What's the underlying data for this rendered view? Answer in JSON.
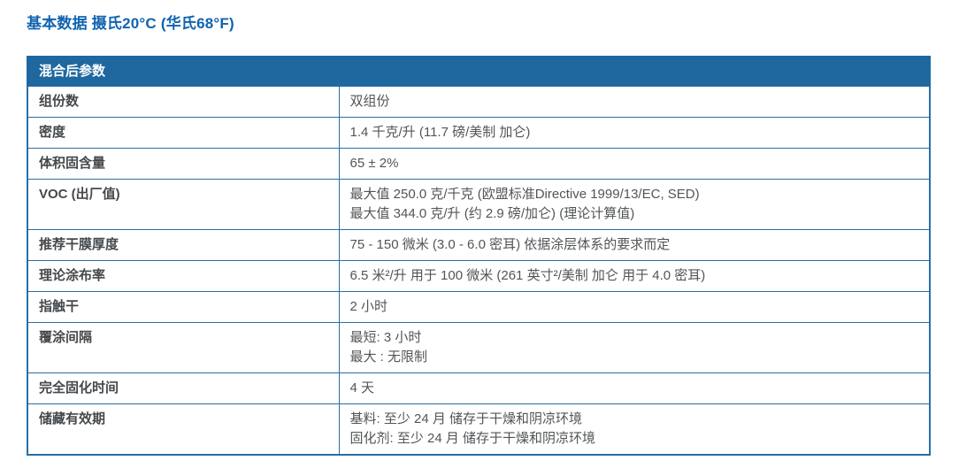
{
  "page": {
    "title": "基本数据 摄氏20°C (华氏68°F)"
  },
  "table": {
    "header": "混合后参数",
    "rows": [
      {
        "label": "组份数",
        "values": [
          "双组份"
        ]
      },
      {
        "label": "密度",
        "values": [
          "1.4 千克/升 (11.7 磅/美制 加仑)"
        ]
      },
      {
        "label": "体积固含量",
        "values": [
          "65 ± 2%"
        ]
      },
      {
        "label": "VOC (出厂值)",
        "values": [
          "最大值 250.0 克/千克 (欧盟标准Directive 1999/13/EC, SED)",
          "最大值 344.0 克/升 (约 2.9 磅/加仑) (理论计算值)"
        ]
      },
      {
        "label": "推荐干膜厚度",
        "values": [
          "75 - 150 微米 (3.0 - 6.0 密耳) 依据涂层体系的要求而定"
        ]
      },
      {
        "label": "理论涂布率",
        "values": [
          "6.5 米²/升 用于 100 微米 (261 英寸²/美制 加仑 用于 4.0 密耳)"
        ]
      },
      {
        "label": "指触干",
        "values": [
          "2 小时"
        ]
      },
      {
        "label": "覆涂间隔",
        "values": [
          "最短: 3 小时",
          "最大 : 无限制"
        ]
      },
      {
        "label": "完全固化时间",
        "values": [
          "4 天"
        ]
      },
      {
        "label": "储藏有效期",
        "values": [
          "基料: 至少 24 月 储存于干燥和阴凉环境",
          "固化剂: 至少 24 月 储存于干燥和阴凉环境"
        ]
      }
    ]
  },
  "colors": {
    "title_text": "#1063b0",
    "header_bg": "#1e689f",
    "header_text": "#ffffff",
    "table_border": "#2a6fa4",
    "label_text": "#45494c",
    "value_text": "#515558",
    "background": "#ffffff"
  }
}
